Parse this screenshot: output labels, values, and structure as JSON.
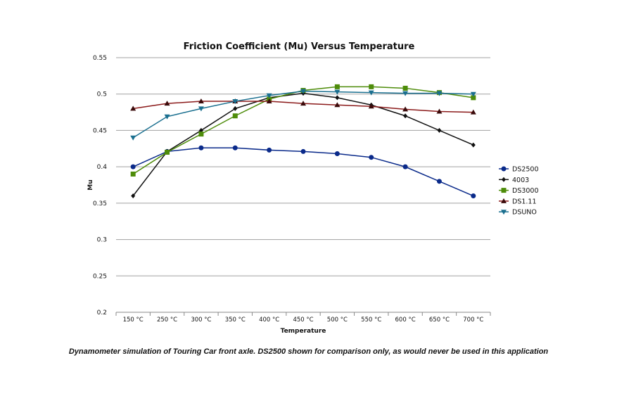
{
  "chart_data": {
    "type": "line",
    "title": "Friction Coefficient (Mu) Versus Temperature",
    "xlabel": "Temperature",
    "ylabel": "Mu",
    "categories": [
      "150 °C",
      "250 °C",
      "300 °C",
      "350 °C",
      "400 °C",
      "450 °C",
      "500 °C",
      "550 °C",
      "600 °C",
      "650 °C",
      "700 °C"
    ],
    "ylim": [
      0.2,
      0.55
    ],
    "yticks": [
      "0.2",
      "0.25",
      "0.3",
      "0.35",
      "0.4",
      "0.45",
      "0.5",
      "0.55"
    ],
    "grid": true,
    "legend_position": "right",
    "series": [
      {
        "name": "DS2500",
        "color": "#0a2a8a",
        "marker": "circle",
        "values": [
          0.4,
          0.421,
          0.426,
          0.426,
          0.423,
          0.421,
          0.418,
          0.413,
          0.4,
          0.38,
          0.36
        ]
      },
      {
        "name": "4003",
        "color": "#111111",
        "marker": "diamond",
        "values": [
          0.36,
          0.421,
          0.45,
          0.48,
          0.495,
          0.501,
          0.495,
          0.485,
          0.47,
          0.45,
          0.43
        ]
      },
      {
        "name": "DS3000",
        "color": "#4e8c0a",
        "marker": "square",
        "values": [
          0.39,
          0.42,
          0.445,
          0.47,
          0.493,
          0.505,
          0.51,
          0.51,
          0.508,
          0.502,
          0.495
        ]
      },
      {
        "name": "DS1.11",
        "color": "#3a0a0a",
        "line_color": "#8b1a1a",
        "marker": "triangle-up",
        "values": [
          0.48,
          0.487,
          0.49,
          0.49,
          0.49,
          0.487,
          0.485,
          0.483,
          0.479,
          0.476,
          0.475
        ]
      },
      {
        "name": "DSUNO",
        "color": "#1a6f8f",
        "marker": "triangle-down",
        "values": [
          0.44,
          0.469,
          0.48,
          0.49,
          0.498,
          0.504,
          0.503,
          0.502,
          0.501,
          0.501,
          0.5
        ]
      }
    ]
  },
  "caption": "Dynamometer simulation of Touring Car front axle. DS2500 shown for comparison only, as would never be used in this application"
}
